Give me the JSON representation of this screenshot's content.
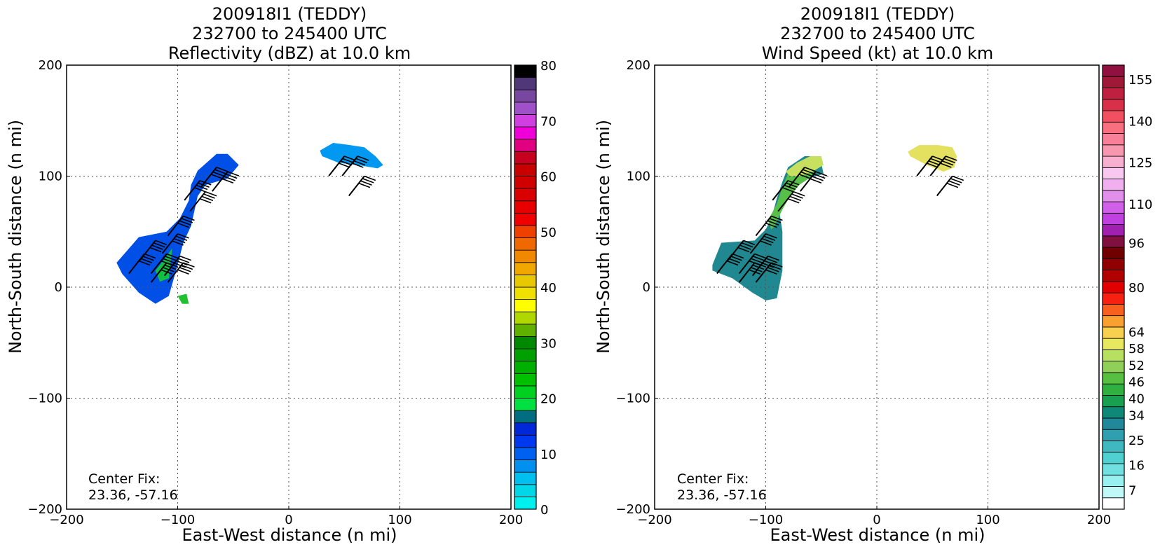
{
  "chart_data": [
    {
      "type": "heatmap",
      "title_lines": [
        "200918I1 (TEDDY)",
        "232700 to 245400 UTC",
        "Reflectivity (dBZ) at 10.0 km"
      ],
      "xlabel": "East-West distance (n mi)",
      "ylabel": "North-South distance (n mi)",
      "xlim": [
        -200,
        200
      ],
      "ylim": [
        -200,
        200
      ],
      "xticks": [
        -200,
        -100,
        0,
        100,
        200
      ],
      "yticks": [
        -200,
        -100,
        0,
        100,
        200
      ],
      "xtick_labels": [
        "−200",
        "−100",
        "0",
        "100",
        "200"
      ],
      "ytick_labels": [
        "−200",
        "−100",
        "0",
        "100",
        "200"
      ],
      "grid": true,
      "annotation_lines": [
        "Center Fix:",
        "23.36, -57.16"
      ],
      "colorbar": {
        "colors": [
          "#00f0f0",
          "#00d8e8",
          "#00c0f0",
          "#0090f0",
          "#0060f0",
          "#0038f0",
          "#0028d8",
          "#006e80",
          "#00e040",
          "#00d020",
          "#00c000",
          "#00b000",
          "#00a000",
          "#008800",
          "#60b000",
          "#b0d800",
          "#ffff00",
          "#f0e000",
          "#e8c800",
          "#f0a800",
          "#f08800",
          "#f06800",
          "#f04000",
          "#f00000",
          "#e80000",
          "#d80000",
          "#d00000",
          "#c80000",
          "#c80020",
          "#e00080",
          "#f000d8",
          "#d040e0",
          "#a050c8",
          "#7848a0",
          "#503878",
          "#000000"
        ],
        "tick_values": [
          0,
          10,
          20,
          30,
          40,
          50,
          60,
          70,
          80
        ],
        "tick_labels": [
          "0",
          "10",
          "20",
          "30",
          "40",
          "50",
          "60",
          "70",
          "80"
        ],
        "min": 0,
        "max": 80
      },
      "echo_regions": [
        {
          "x": [
            -155,
            -135,
            -110,
            -98,
            -90,
            -88,
            -82,
            -65,
            -55,
            -45,
            -55,
            -75,
            -82,
            -88,
            -95,
            -100,
            -108,
            -120,
            -135,
            -150
          ],
          "y": [
            22,
            45,
            50,
            62,
            78,
            92,
            105,
            120,
            120,
            110,
            98,
            92,
            82,
            55,
            40,
            20,
            -8,
            -15,
            -5,
            12
          ],
          "level": "#0050e8"
        },
        {
          "x": [
            28,
            40,
            55,
            68,
            78,
            85,
            80,
            62,
            45,
            30
          ],
          "y": [
            123,
            130,
            128,
            126,
            118,
            110,
            107,
            110,
            112,
            118
          ],
          "level": "#0098f0"
        },
        {
          "x": [
            -120,
            -112,
            -105,
            -108,
            -116
          ],
          "y": [
            15,
            25,
            35,
            8,
            5
          ],
          "level": "#10c040"
        },
        {
          "x": [
            -100,
            -92,
            -90,
            -96
          ],
          "y": [
            -8,
            -6,
            -15,
            -15
          ],
          "level": "#20c030"
        }
      ],
      "wind_barbs": [
        {
          "x": -65,
          "y": 108
        },
        {
          "x": -55,
          "y": 104
        },
        {
          "x": -80,
          "y": 96
        },
        {
          "x": -75,
          "y": 86
        },
        {
          "x": -95,
          "y": 64
        },
        {
          "x": -100,
          "y": 48
        },
        {
          "x": -120,
          "y": 42
        },
        {
          "x": -110,
          "y": 30
        },
        {
          "x": -130,
          "y": 30
        },
        {
          "x": -98,
          "y": 28
        },
        {
          "x": -110,
          "y": 22
        },
        {
          "x": -95,
          "y": 22
        },
        {
          "x": 50,
          "y": 118
        },
        {
          "x": 62,
          "y": 118
        },
        {
          "x": 68,
          "y": 100
        }
      ]
    },
    {
      "type": "heatmap",
      "title_lines": [
        "200918I1 (TEDDY)",
        "232700 to 245400 UTC",
        "Wind Speed (kt) at 10.0 km"
      ],
      "xlabel": "East-West distance (n mi)",
      "ylabel": "North-South distance (n mi)",
      "xlim": [
        -200,
        200
      ],
      "ylim": [
        -200,
        200
      ],
      "xticks": [
        -200,
        -100,
        0,
        100,
        200
      ],
      "yticks": [
        -200,
        -100,
        0,
        100,
        200
      ],
      "xtick_labels": [
        "−200",
        "−100",
        "0",
        "100",
        "200"
      ],
      "ytick_labels": [
        "−200",
        "−100",
        "0",
        "100",
        "200"
      ],
      "grid": true,
      "annotation_lines": [
        "Center Fix:",
        "23.36, -57.16"
      ],
      "colorbar": {
        "colors": [
          "#ffffff",
          "#c0f8f8",
          "#98f0f0",
          "#70e0e0",
          "#50d0d0",
          "#40b8c0",
          "#30a0b0",
          "#208898",
          "#108878",
          "#18a050",
          "#30b040",
          "#58c040",
          "#90d058",
          "#b8e060",
          "#e8e860",
          "#f8d050",
          "#f8a030",
          "#f86020",
          "#f82010",
          "#e00000",
          "#b00000",
          "#900000",
          "#700000",
          "#801040",
          "#a020b0",
          "#c040e0",
          "#d060e8",
          "#e090e8",
          "#f0b0f0",
          "#f8c8f0",
          "#f8b0d0",
          "#f898b0",
          "#f88098",
          "#f87080",
          "#f05060",
          "#d83048",
          "#c02040",
          "#a01838",
          "#901040"
        ],
        "tick_values": [
          7,
          16,
          25,
          34,
          40,
          46,
          52,
          58,
          64,
          80,
          96,
          110,
          125,
          140,
          155
        ],
        "tick_labels": [
          "7",
          "16",
          "25",
          "34",
          "40",
          "46",
          "52",
          "58",
          "64",
          "80",
          "96",
          "110",
          "125",
          "140",
          "155"
        ],
        "min": 0,
        "max": 160
      },
      "echo_regions": [
        {
          "x": [
            -148,
            -140,
            -110,
            -100,
            -95,
            -90,
            -85,
            -80,
            -65,
            -55,
            -50,
            -48,
            -62,
            -75,
            -80,
            -88,
            -85,
            -85,
            -90,
            -100,
            -112,
            -130,
            -148
          ],
          "y": [
            20,
            40,
            42,
            52,
            62,
            80,
            95,
            108,
            118,
            118,
            112,
            102,
            98,
            92,
            80,
            70,
            50,
            15,
            -10,
            -12,
            -5,
            8,
            15
          ],
          "level": "#1f8890"
        },
        {
          "x": [
            28,
            38,
            55,
            68,
            72,
            70,
            60,
            45,
            30
          ],
          "y": [
            122,
            128,
            128,
            126,
            118,
            108,
            104,
            110,
            118
          ],
          "level": "#e4e060"
        },
        {
          "x": [
            -98,
            -90,
            -85,
            -80,
            -70,
            -60,
            -55,
            -58,
            -70,
            -78,
            -85,
            -92,
            -95
          ],
          "y": [
            60,
            75,
            90,
            102,
            110,
            115,
            110,
            100,
            92,
            82,
            70,
            55,
            52
          ],
          "level": "#58c048"
        },
        {
          "x": [
            -82,
            -72,
            -60,
            -50,
            -48,
            -58,
            -70,
            -78
          ],
          "y": [
            104,
            112,
            118,
            118,
            110,
            104,
            100,
            100
          ],
          "level": "#c8e060"
        }
      ],
      "wind_barbs": [
        {
          "x": -65,
          "y": 108
        },
        {
          "x": -55,
          "y": 104
        },
        {
          "x": -80,
          "y": 96
        },
        {
          "x": -75,
          "y": 86
        },
        {
          "x": -95,
          "y": 64
        },
        {
          "x": -100,
          "y": 48
        },
        {
          "x": -120,
          "y": 42
        },
        {
          "x": -110,
          "y": 30
        },
        {
          "x": -130,
          "y": 30
        },
        {
          "x": -98,
          "y": 28
        },
        {
          "x": -110,
          "y": 22
        },
        {
          "x": -95,
          "y": 22
        },
        {
          "x": 50,
          "y": 118
        },
        {
          "x": 62,
          "y": 118
        },
        {
          "x": 68,
          "y": 100
        }
      ]
    }
  ]
}
